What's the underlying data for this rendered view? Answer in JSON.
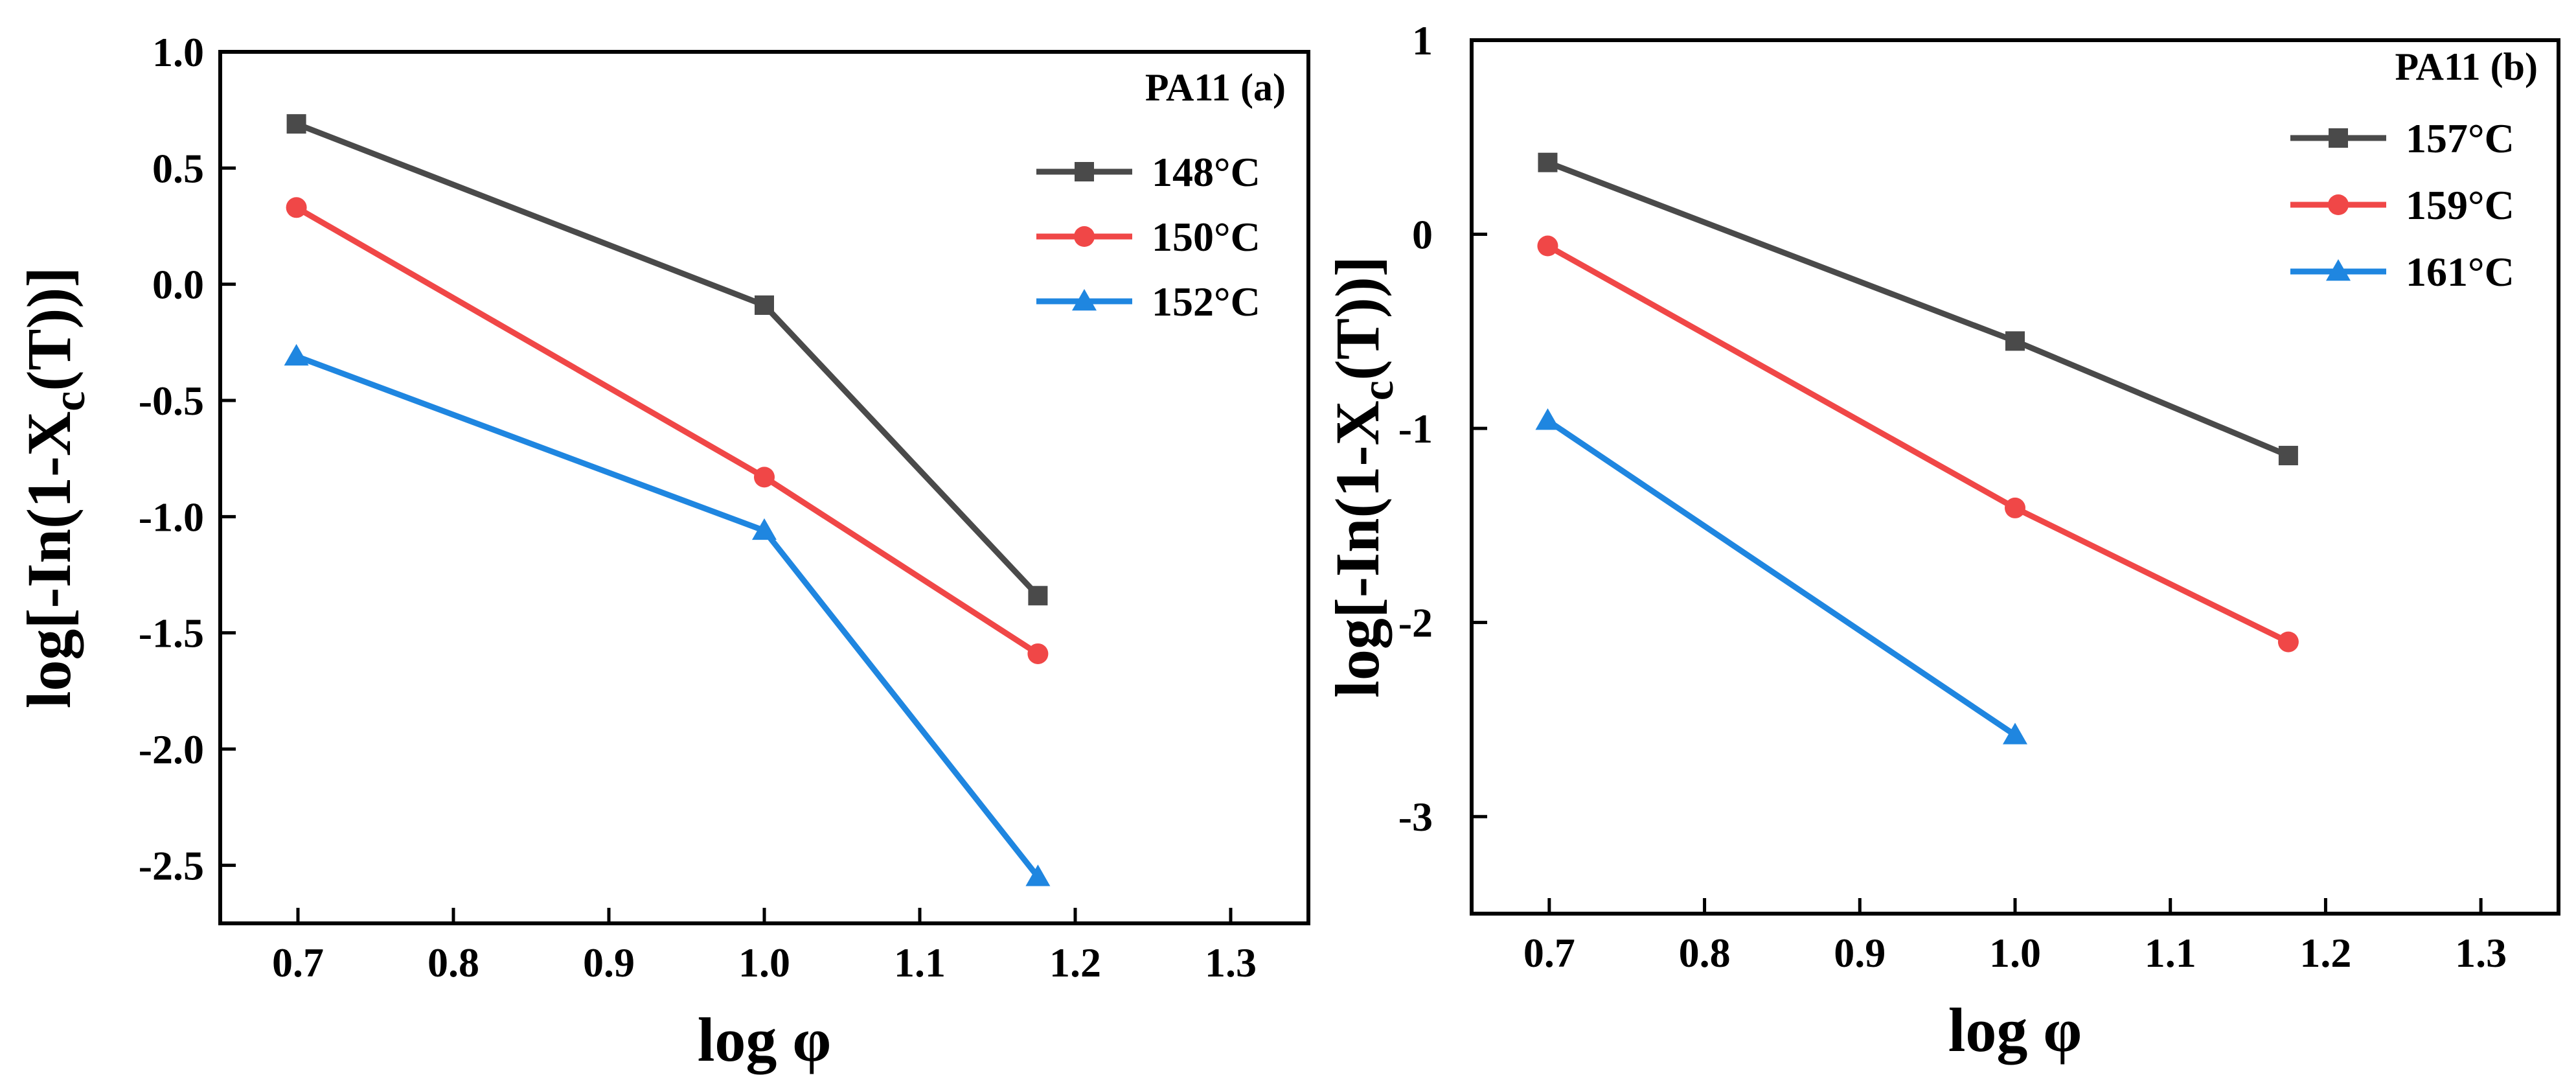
{
  "chart_data": [
    {
      "type": "line",
      "title": "",
      "legend_title": "PA11 (a)",
      "legend_position": "top-right",
      "xlabel": "log φ",
      "ylabel_main": "log[-In(1-X",
      "ylabel_sub": "c",
      "ylabel_tail": "(T))]",
      "xlim": [
        0.65,
        1.35
      ],
      "ylim": [
        -2.75,
        1.0
      ],
      "xticks": [
        0.7,
        0.8,
        0.9,
        1.0,
        1.1,
        1.2,
        1.3
      ],
      "xtick_labels": [
        "0.7",
        "0.8",
        "0.9",
        "1.0",
        "1.1",
        "1.2",
        "1.3"
      ],
      "yticks": [
        -2.5,
        -2.0,
        -1.5,
        -1.0,
        -0.5,
        0.0,
        0.5,
        1.0
      ],
      "ytick_labels": [
        "-2.5",
        "-2.0",
        "-1.5",
        "-1.0",
        "-0.5",
        "0.0",
        "0.5",
        "1.0"
      ],
      "grid": false,
      "series": [
        {
          "name": "148°C",
          "color": "#4a4a4a",
          "marker": "square",
          "x": [
            0.699,
            1.0,
            1.176
          ],
          "y": [
            0.69,
            -0.09,
            -1.34
          ]
        },
        {
          "name": "150°C",
          "color": "#f04747",
          "marker": "circle",
          "x": [
            0.699,
            1.0,
            1.176
          ],
          "y": [
            0.33,
            -0.83,
            -1.59
          ]
        },
        {
          "name": "152°C",
          "color": "#1f86e0",
          "marker": "triangle",
          "x": [
            0.699,
            1.0,
            1.176
          ],
          "y": [
            -0.31,
            -1.06,
            -2.55
          ]
        }
      ]
    },
    {
      "type": "line",
      "title": "",
      "legend_title": "PA11 (b)",
      "legend_position": "top-right",
      "xlabel": "log φ",
      "ylabel_main": "log[-In(1-X",
      "ylabel_sub": "c",
      "ylabel_tail": "(T))]",
      "xlim": [
        0.65,
        1.35
      ],
      "ylim": [
        -3.5,
        1.0
      ],
      "xticks": [
        0.7,
        0.8,
        0.9,
        1.0,
        1.1,
        1.2,
        1.3
      ],
      "xtick_labels": [
        "0.7",
        "0.8",
        "0.9",
        "1.0",
        "1.1",
        "1.2",
        "1.3"
      ],
      "yticks": [
        -3,
        -2,
        -1,
        0,
        1
      ],
      "ytick_labels": [
        "-3",
        "-2",
        "-1",
        "0",
        "1"
      ],
      "grid": false,
      "series": [
        {
          "name": "157°C",
          "color": "#4a4a4a",
          "marker": "square",
          "x": [
            0.699,
            1.0,
            1.176
          ],
          "y": [
            0.37,
            -0.55,
            -1.14
          ]
        },
        {
          "name": "159°C",
          "color": "#f04747",
          "marker": "circle",
          "x": [
            0.699,
            1.0,
            1.176
          ],
          "y": [
            -0.06,
            -1.41,
            -2.1
          ]
        },
        {
          "name": "161°C",
          "color": "#1f86e0",
          "marker": "triangle",
          "x": [
            0.699,
            1.0
          ],
          "y": [
            -0.96,
            -2.58
          ]
        }
      ]
    }
  ]
}
